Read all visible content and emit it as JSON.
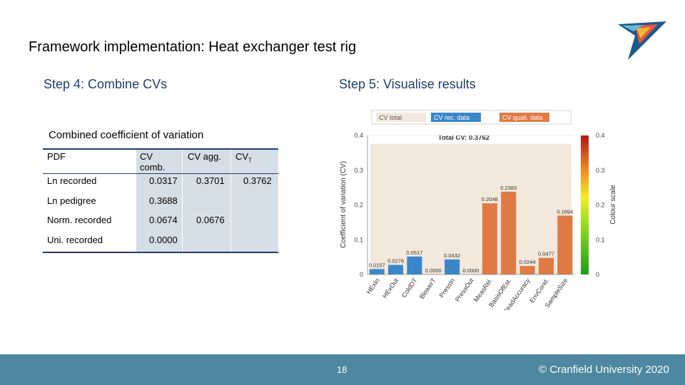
{
  "slide": {
    "title": "Framework implementation: Heat exchanger test rig",
    "step4": "Step 4: Combine CVs",
    "step5": "Step 5: Visualise results"
  },
  "table": {
    "caption": "Combined coefficient of variation",
    "headers": {
      "pdf": "PDF",
      "cv_comb_1": "CV",
      "cv_comb_2": "comb.",
      "cv_agg": "CV agg.",
      "cv_total": "CV",
      "cv_total_sub": "T"
    },
    "rows": [
      {
        "pdf": "Ln recorded",
        "cv_comb": "0.0317",
        "cv_agg": "0.3701",
        "cv_total": "0.3762"
      },
      {
        "pdf": "Ln pedigree",
        "cv_comb": "0.3688"
      },
      {
        "pdf": "Norm. recorded",
        "cv_comb": "0.0674",
        "cv_agg": "0.0676"
      },
      {
        "pdf": "Uni. recorded",
        "cv_comb": "0.0000"
      }
    ]
  },
  "footer": {
    "page": "18",
    "copyright": "© Cranfield University 2020"
  },
  "colors": {
    "footer": "#4d87a0",
    "heading": "#1f3f68",
    "table_shade": "#d5dee5",
    "rec_data": "#3a86c8",
    "quali_data": "#e07a44",
    "total_band": "#f3e8dc"
  },
  "chart_data": {
    "type": "bar",
    "title": "Total CV: 0.3762",
    "ylabel": "Coefficient of variation (CV)",
    "ylim": [
      0,
      0.4
    ],
    "yticks": [
      "0",
      "0.1",
      "0.2",
      "0.3",
      "0.4"
    ],
    "total_cv": 0.3762,
    "categories": [
      "HExIn",
      "HExOut",
      "ColdDT",
      "BlowerT",
      "PressIn",
      "PressOut",
      "MeasRel.",
      "BasisOfEst.",
      "ReadAccuracy",
      "EnvCond.",
      "SampleSize"
    ],
    "values": [
      0.0157,
      0.0276,
      0.0517,
      0.0,
      0.0432,
      0.0,
      0.2048,
      0.2383,
      0.0244,
      0.0477,
      0.1694
    ],
    "value_labels": [
      "0.0157",
      "0.0276",
      "0.0517",
      "0.0000",
      "0.0432",
      "0.0000",
      "0.2048",
      "0.2383",
      "0.0244",
      "0.0477",
      "0.1694"
    ],
    "groups": [
      "rec",
      "rec",
      "rec",
      "rec",
      "rec",
      "rec",
      "quali",
      "quali",
      "quali",
      "quali",
      "quali"
    ],
    "legend": [
      "CV total",
      "CV rec. data",
      "CV quali. data"
    ],
    "legend_position": "top",
    "colorbar": {
      "label": "Colour scale",
      "ticks": [
        "0",
        "0.1",
        "0.2",
        "0.3",
        "0.4"
      ]
    },
    "grid": true
  }
}
